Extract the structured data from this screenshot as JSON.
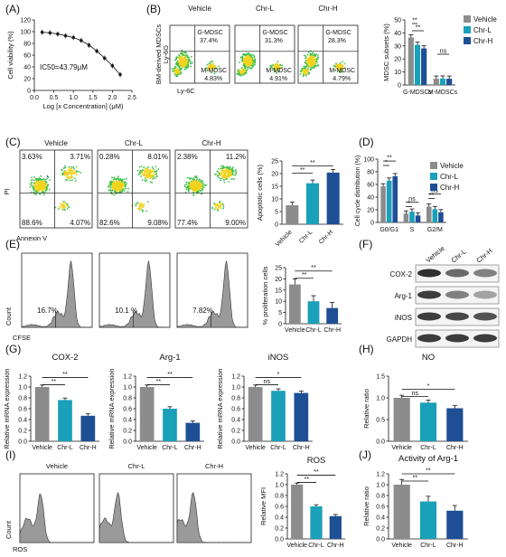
{
  "panel_letters": [
    "(A)",
    "(B)",
    "(C)",
    "(D)",
    "(E)",
    "(F)",
    "(G)",
    "(H)",
    "(I)",
    "(J)"
  ],
  "colors": {
    "vehicle": "#8c8c8c",
    "chr_l": "#1aa0b8",
    "chr_h": "#1e4f95",
    "histogram_fill": "#9a9a9a",
    "density_low": "#2b3fa8",
    "density_mid": "#3fc04a",
    "density_high": "#f2d21c"
  },
  "panel_A": {
    "title_ic50": "IC50=43.79μM",
    "ylabel": "Cell viability (%)",
    "xlabel": "Log [x Concentration] (μM)",
    "chart_data": {
      "type": "line",
      "x": [
        0.2,
        0.4,
        0.6,
        0.8,
        1.0,
        1.2,
        1.4,
        1.6,
        1.8,
        2.0,
        2.2
      ],
      "y": [
        99,
        98,
        96,
        93,
        90,
        85,
        77,
        67,
        55,
        42,
        27
      ],
      "ylim": [
        0,
        120
      ],
      "yticks": [
        "0",
        "20",
        "40",
        "60",
        "80",
        "100",
        "120"
      ],
      "xlim": [
        0.0,
        2.5
      ],
      "xticks": [
        "0.0",
        "0.5",
        "1.0",
        "1.5",
        "2.0",
        "2.5"
      ]
    }
  },
  "panel_B": {
    "groups": [
      "Vehicle",
      "Chr-L",
      "Chr-H"
    ],
    "ylabel_lines": [
      "BM-derived MDSCs",
      "Ly-6G"
    ],
    "xlabel": "Ly-6C",
    "gmdsc_label": "G-MDSC",
    "mmdsc_label": "M-MDSC",
    "gmdsc_pct": [
      "37.4%",
      "31.3%",
      "28.3%"
    ],
    "mmdsc_pct": [
      "4.83%",
      "4.91%",
      "4.79%"
    ],
    "chart_data": {
      "type": "bar",
      "categories": [
        "G-MDSCs",
        "M-MDSCs"
      ],
      "series": [
        {
          "name": "Vehicle",
          "values": [
            36.5,
            4.8
          ]
        },
        {
          "name": "Chr-L",
          "values": [
            30.8,
            4.9
          ]
        },
        {
          "name": "Chr-H",
          "values": [
            28.1,
            4.8
          ]
        }
      ],
      "ylabel": "MDSC subsets (%)",
      "ylim": [
        0,
        50
      ],
      "yticks": [
        "0",
        "10",
        "20",
        "30",
        "40",
        "50"
      ],
      "sig": [
        "**",
        "**",
        "ns"
      ]
    }
  },
  "panel_C": {
    "groups": [
      "Vehicle",
      "Chr-L",
      "Chr-H"
    ],
    "ylabel": "PI",
    "xlabel": "Annexin V",
    "quadrants": [
      [
        "3.63%",
        "3.71%",
        "88.6%",
        "4.07%"
      ],
      [
        "0.28%",
        "8.01%",
        "82.6%",
        "9.08%"
      ],
      [
        "2.38%",
        "11.2%",
        "77.4%",
        "9.00%"
      ]
    ],
    "chart_data": {
      "type": "bar",
      "categories": [
        "Vehicle",
        "Chr-L",
        "Chr-H"
      ],
      "values": [
        7.5,
        16.2,
        20.4
      ],
      "ylabel": "Apoptotic cells (%)",
      "ylim": [
        0,
        25
      ],
      "yticks": [
        "0",
        "5",
        "10",
        "15",
        "20",
        "25"
      ],
      "sig": [
        "**",
        "**"
      ]
    }
  },
  "panel_D": {
    "chart_data": {
      "type": "bar",
      "categories": [
        "G0/G1",
        "S",
        "G2/M"
      ],
      "series": [
        {
          "name": "Vehicle",
          "values": [
            57,
            14,
            25
          ]
        },
        {
          "name": "Chr-L",
          "values": [
            66,
            17,
            21
          ]
        },
        {
          "name": "Chr-H",
          "values": [
            73,
            11,
            16
          ]
        }
      ],
      "ylabel": "Cell cycle distribution (%)",
      "ylim": [
        0,
        100
      ],
      "yticks": [
        "0",
        "20",
        "40",
        "60",
        "80",
        "100"
      ],
      "sig": [
        "*",
        "**",
        "*",
        "ns",
        "**",
        "ns"
      ]
    }
  },
  "panel_E": {
    "ylabel": "Count",
    "xlabel": "CFSE",
    "pcts": [
      "16.7%",
      "10.1 %",
      "7.82%"
    ],
    "chart_data": {
      "type": "bar",
      "categories": [
        "Vehicle",
        "Chr-L",
        "Chr-H"
      ],
      "values": [
        17.5,
        10.0,
        7.0
      ],
      "ylabel": "% proliferation cells",
      "ylim": [
        0,
        25
      ],
      "yticks": [
        "0",
        "5",
        "10",
        "15",
        "20",
        "25"
      ],
      "sig": [
        "**",
        "**"
      ]
    }
  },
  "panel_F": {
    "lanes": [
      "Vehicle",
      "Chr-L",
      "Chr-H"
    ],
    "bands": [
      "COX-2",
      "Arg-1",
      "iNOS",
      "GAPDH"
    ]
  },
  "panel_G": {
    "ylabel": "Relative mRNA expression",
    "charts": [
      {
        "type": "bar",
        "title": "COX-2",
        "categories": [
          "Vehicle",
          "Chr-L",
          "Chr-H"
        ],
        "values": [
          1.0,
          0.76,
          0.47
        ],
        "ylim": [
          0,
          1.2
        ],
        "yticks": [
          "0.0",
          "0.2",
          "0.4",
          "0.6",
          "0.8",
          "1.0",
          "1.2"
        ],
        "sig": [
          "**",
          "**"
        ]
      },
      {
        "type": "bar",
        "title": "Arg-1",
        "categories": [
          "Vehicle",
          "Chr-L",
          "Chr-H"
        ],
        "values": [
          1.0,
          0.6,
          0.34
        ],
        "ylim": [
          0,
          1.2
        ],
        "yticks": [
          "0.0",
          "0.2",
          "0.4",
          "0.6",
          "0.8",
          "1.0",
          "1.2"
        ],
        "sig": [
          "**",
          "**"
        ]
      },
      {
        "type": "bar",
        "title": "iNOS",
        "categories": [
          "Vehicle",
          "Chr-L",
          "Chr-H"
        ],
        "values": [
          1.0,
          0.93,
          0.89
        ],
        "ylim": [
          0,
          1.2
        ],
        "yticks": [
          "0.0",
          "0.2",
          "0.4",
          "0.6",
          "0.8",
          "1.0",
          "1.2"
        ],
        "sig": [
          "ns",
          "*"
        ]
      }
    ]
  },
  "panel_H": {
    "chart_data": {
      "type": "bar",
      "title": "NO",
      "categories": [
        "Vehicle",
        "Chr-L",
        "Chr-H"
      ],
      "values": [
        1.0,
        0.89,
        0.76
      ],
      "ylabel": "Relative ratio",
      "ylim": [
        0,
        1.5
      ],
      "yticks": [
        "0.0",
        "0.5",
        "1.0",
        "1.5"
      ],
      "sig": [
        "ns",
        "*"
      ]
    }
  },
  "panel_I": {
    "groups": [
      "Vehicle",
      "Chr-L",
      "Chr-H"
    ],
    "ylabel": "Count",
    "xlabel": "ROS",
    "chart_data": {
      "type": "bar",
      "title": "ROS",
      "categories": [
        "Vehicle",
        "Chr-L",
        "Chr-H"
      ],
      "values": [
        1.0,
        0.6,
        0.42
      ],
      "ylabel": "Relative MFI",
      "ylim": [
        0,
        1.2
      ],
      "yticks": [
        "0.0",
        "0.2",
        "0.4",
        "0.6",
        "0.8",
        "1.0",
        "1.2"
      ],
      "sig": [
        "**",
        "**"
      ]
    }
  },
  "panel_J": {
    "chart_data": {
      "type": "bar",
      "title": "Activity of Arg-1",
      "categories": [
        "Vehicle",
        "Chr-L",
        "Chr-H"
      ],
      "values": [
        1.0,
        0.69,
        0.52
      ],
      "ylabel": "Relative ratio",
      "ylim": [
        0,
        1.2
      ],
      "yticks": [
        "0.0",
        "0.2",
        "0.4",
        "0.6",
        "0.8",
        "1.0",
        "1.2"
      ],
      "sig": [
        "**",
        "**"
      ]
    }
  }
}
